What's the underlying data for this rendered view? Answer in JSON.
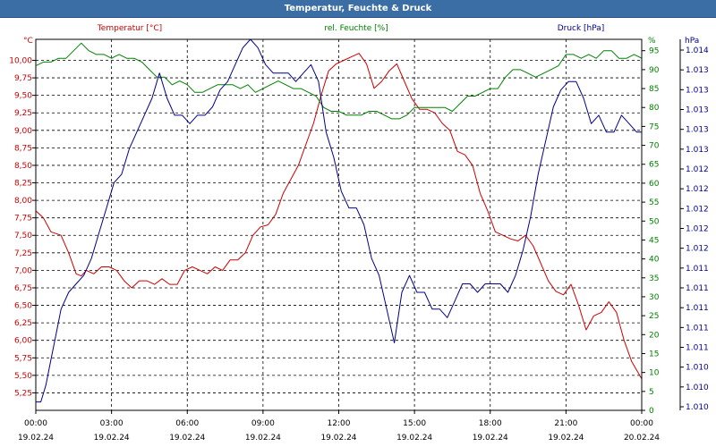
{
  "chart_data": {
    "type": "line",
    "title": "Temperatur, Feuchte & Druck",
    "x_tick_labels": [
      {
        "time": "00:00",
        "date": "19.02.24"
      },
      {
        "time": "03:00",
        "date": "19.02.24"
      },
      {
        "time": "06:00",
        "date": "19.02.24"
      },
      {
        "time": "09:00",
        "date": "19.02.24"
      },
      {
        "time": "12:00",
        "date": "19.02.24"
      },
      {
        "time": "15:00",
        "date": "19.02.24"
      },
      {
        "time": "18:00",
        "date": "19.02.24"
      },
      {
        "time": "21:00",
        "date": "19.02.24"
      },
      {
        "time": "00:00",
        "date": "20.02.24"
      }
    ],
    "x_range_hours": [
      0,
      24
    ],
    "axes": {
      "left": {
        "unit": "°C",
        "range": [
          5.0,
          10.3
        ],
        "ticks": [
          "10,00",
          "9,75",
          "9,50",
          "9,25",
          "9,00",
          "8,75",
          "8,50",
          "8,25",
          "8,00",
          "7,75",
          "7,50",
          "7,25",
          "7,00",
          "6,75",
          "6,50",
          "6,25",
          "6,00",
          "5,75",
          "5,50",
          "5,25"
        ],
        "tick_values": [
          10.0,
          9.75,
          9.5,
          9.25,
          9.0,
          8.75,
          8.5,
          8.25,
          8.0,
          7.75,
          7.5,
          7.25,
          7.0,
          6.75,
          6.5,
          6.25,
          6.0,
          5.75,
          5.5,
          5.25
        ]
      },
      "mid": {
        "unit": "%",
        "range": [
          0,
          98
        ],
        "ticks": [
          "95",
          "90",
          "85",
          "80",
          "75",
          "70",
          "65",
          "60",
          "55",
          "50",
          "45",
          "40",
          "35",
          "30",
          "25",
          "20",
          "15",
          "10",
          "5",
          "0"
        ],
        "tick_values": [
          95,
          90,
          85,
          80,
          75,
          70,
          65,
          60,
          55,
          50,
          45,
          40,
          35,
          30,
          25,
          20,
          15,
          10,
          5,
          0
        ]
      },
      "right": {
        "unit": "hPa",
        "range": [
          1.0098,
          1.0142
        ],
        "ticks": [
          "1.014",
          "1.013",
          "1.013",
          "1.013",
          "1.013",
          "1.013",
          "1.012",
          "1.012",
          "1.012",
          "1.012",
          "1.012",
          "1.011",
          "1.011",
          "1.011",
          "1.011",
          "1.011",
          "1.010",
          "1.010",
          "1.010"
        ]
      }
    },
    "legend": {
      "temp": "Temperatur [°C]",
      "hum": "rel. Feuchte [%]",
      "press": "Druck [hPa]"
    },
    "series": [
      {
        "name": "Temperatur [°C]",
        "axis": "left",
        "color": "#cc0000",
        "x": [
          0,
          0.3,
          0.6,
          1.0,
          1.3,
          1.6,
          1.8,
          2.0,
          2.3,
          2.6,
          2.9,
          3.2,
          3.5,
          3.8,
          4.1,
          4.4,
          4.7,
          5.0,
          5.3,
          5.6,
          5.9,
          6.2,
          6.5,
          6.8,
          7.1,
          7.4,
          7.7,
          8.0,
          8.3,
          8.6,
          8.9,
          9.2,
          9.5,
          9.8,
          10.1,
          10.4,
          10.7,
          11.0,
          11.3,
          11.6,
          11.9,
          12.2,
          12.5,
          12.8,
          13.1,
          13.4,
          13.7,
          14.0,
          14.3,
          14.6,
          14.9,
          15.2,
          15.5,
          15.8,
          16.1,
          16.4,
          16.7,
          17.0,
          17.3,
          17.6,
          17.9,
          18.2,
          18.5,
          18.8,
          19.1,
          19.4,
          19.7,
          20.0,
          20.3,
          20.6,
          20.9,
          21.2,
          21.5,
          21.8,
          22.1,
          22.4,
          22.7,
          23.0,
          23.3,
          23.6,
          24.0
        ],
        "values": [
          7.85,
          7.75,
          7.55,
          7.5,
          7.25,
          6.95,
          6.92,
          7.0,
          6.95,
          7.05,
          7.05,
          7.0,
          6.85,
          6.75,
          6.85,
          6.85,
          6.8,
          6.88,
          6.8,
          6.8,
          7.0,
          7.05,
          7.0,
          6.95,
          7.05,
          7.0,
          7.15,
          7.15,
          7.25,
          7.5,
          7.62,
          7.65,
          7.8,
          8.1,
          8.3,
          8.5,
          8.8,
          9.1,
          9.5,
          9.85,
          9.95,
          10.0,
          10.05,
          10.1,
          9.95,
          9.6,
          9.7,
          9.85,
          9.95,
          9.7,
          9.45,
          9.3,
          9.3,
          9.25,
          9.1,
          9.0,
          8.7,
          8.65,
          8.5,
          8.1,
          7.85,
          7.55,
          7.5,
          7.45,
          7.42,
          7.5,
          7.35,
          7.1,
          6.85,
          6.7,
          6.65,
          6.8,
          6.5,
          6.15,
          6.35,
          6.4,
          6.55,
          6.4,
          6.0,
          5.7,
          5.45
        ]
      },
      {
        "name": "rel. Feuchte [%]",
        "axis": "mid",
        "color": "#008000",
        "x": [
          0,
          0.3,
          0.6,
          0.9,
          1.2,
          1.5,
          1.8,
          2.1,
          2.4,
          2.7,
          3.0,
          3.3,
          3.6,
          3.9,
          4.2,
          4.5,
          4.8,
          5.1,
          5.4,
          5.7,
          6.0,
          6.3,
          6.6,
          6.9,
          7.2,
          7.5,
          7.8,
          8.1,
          8.4,
          8.7,
          9.0,
          9.3,
          9.6,
          9.9,
          10.2,
          10.5,
          10.8,
          11.1,
          11.4,
          11.7,
          12.0,
          12.3,
          12.6,
          12.9,
          13.2,
          13.5,
          13.8,
          14.1,
          14.4,
          14.7,
          15.0,
          15.3,
          15.6,
          15.9,
          16.2,
          16.5,
          16.8,
          17.1,
          17.4,
          17.7,
          18.0,
          18.3,
          18.6,
          18.9,
          19.2,
          19.5,
          19.8,
          20.1,
          20.4,
          20.7,
          21.0,
          21.3,
          21.6,
          21.9,
          22.2,
          22.5,
          22.8,
          23.1,
          23.4,
          23.7,
          24.0
        ],
        "values": [
          91,
          92,
          92,
          93,
          93,
          95,
          97,
          95,
          94,
          94,
          93,
          94,
          93,
          93,
          92,
          90,
          88,
          88,
          86,
          87,
          86,
          84,
          84,
          85,
          86,
          86,
          86,
          85,
          86,
          84,
          85,
          86,
          87,
          86,
          85,
          85,
          84,
          83,
          80,
          79,
          79,
          78,
          78,
          78,
          79,
          79,
          78,
          77,
          77,
          78,
          80,
          80,
          80,
          80,
          80,
          79,
          81,
          83,
          83,
          84,
          85,
          85,
          88,
          90,
          90,
          89,
          88,
          89,
          90,
          91,
          94,
          94,
          93,
          94,
          93,
          95,
          95,
          93,
          93,
          94,
          93
        ]
      },
      {
        "name": "Druck [hPa]",
        "axis": "right",
        "color": "#00008b",
        "x": [
          0,
          0.2,
          0.4,
          0.6,
          0.8,
          1.0,
          1.3,
          1.6,
          1.9,
          2.2,
          2.5,
          2.8,
          3.1,
          3.4,
          3.7,
          4.0,
          4.3,
          4.6,
          4.9,
          5.2,
          5.5,
          5.8,
          6.1,
          6.4,
          6.7,
          7.0,
          7.3,
          7.6,
          7.9,
          8.2,
          8.5,
          8.8,
          9.1,
          9.4,
          9.7,
          10.0,
          10.3,
          10.6,
          10.9,
          11.2,
          11.5,
          11.8,
          12.1,
          12.4,
          12.7,
          13.0,
          13.3,
          13.6,
          13.9,
          14.2,
          14.5,
          14.8,
          15.1,
          15.4,
          15.7,
          16.0,
          16.3,
          16.6,
          16.9,
          17.2,
          17.5,
          17.8,
          18.1,
          18.4,
          18.7,
          19.0,
          19.3,
          19.6,
          19.9,
          20.2,
          20.5,
          20.8,
          21.1,
          21.4,
          21.7,
          22.0,
          22.3,
          22.6,
          22.9,
          23.2,
          23.5,
          23.8,
          24.0
        ],
        "values": [
          1.0099,
          1.0099,
          1.0101,
          1.0104,
          1.0107,
          1.011,
          1.0112,
          1.0113,
          1.0114,
          1.0116,
          1.0119,
          1.0122,
          1.0125,
          1.0126,
          1.0129,
          1.0131,
          1.0133,
          1.0135,
          1.0138,
          1.0135,
          1.0133,
          1.0133,
          1.0132,
          1.0133,
          1.0133,
          1.0134,
          1.0136,
          1.0137,
          1.0139,
          1.0141,
          1.0142,
          1.0141,
          1.0139,
          1.0138,
          1.0138,
          1.0138,
          1.0137,
          1.0138,
          1.0139,
          1.0137,
          1.0131,
          1.0128,
          1.0124,
          1.0122,
          1.0122,
          1.012,
          1.0116,
          1.0114,
          1.011,
          1.0106,
          1.0112,
          1.0114,
          1.0112,
          1.0112,
          1.011,
          1.011,
          1.0109,
          1.0111,
          1.0113,
          1.0113,
          1.0112,
          1.0113,
          1.0113,
          1.0113,
          1.0112,
          1.0114,
          1.0117,
          1.0121,
          1.0126,
          1.013,
          1.0134,
          1.0136,
          1.0137,
          1.0137,
          1.0135,
          1.0132,
          1.0133,
          1.0131,
          1.0131,
          1.0133,
          1.0132,
          1.0131,
          1.0131
        ]
      }
    ]
  },
  "colors": {
    "temp": "#cc0000",
    "hum": "#008000",
    "press": "#00008b",
    "title_bar": "#3a6ea5"
  }
}
